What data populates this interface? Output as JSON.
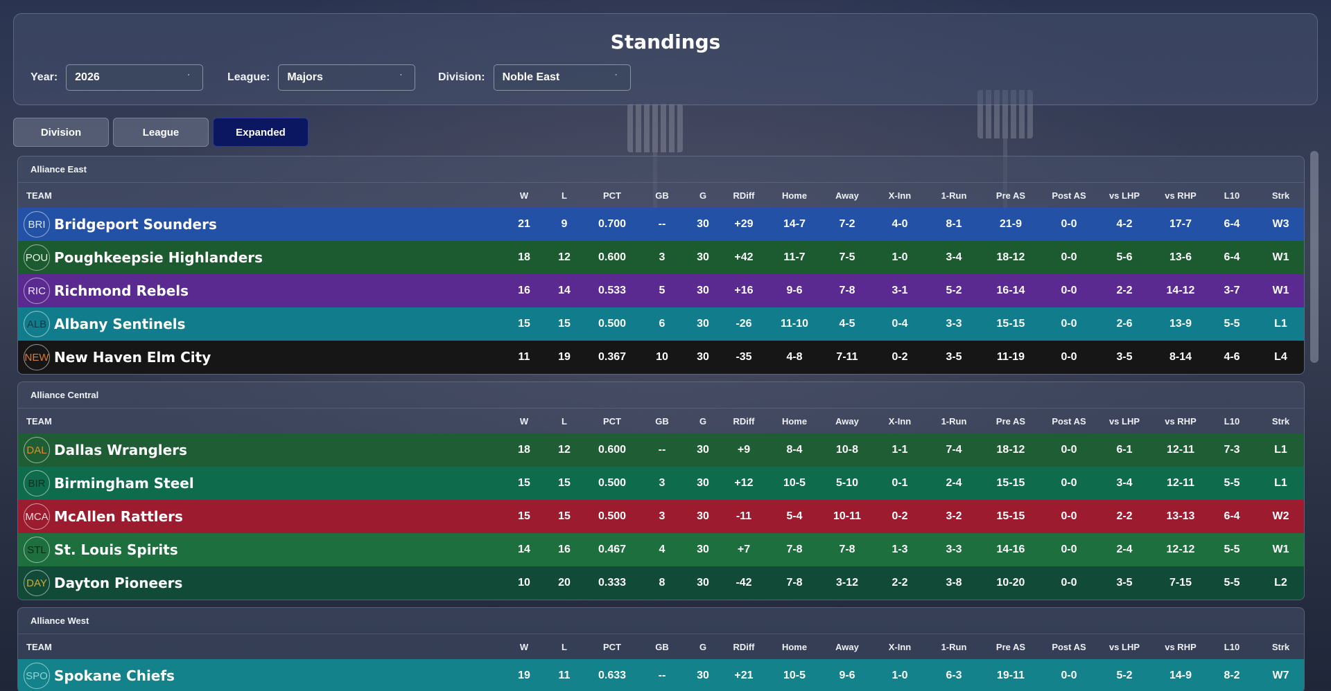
{
  "title": "Standings",
  "filters": {
    "year": {
      "label": "Year:",
      "value": "2026"
    },
    "league": {
      "label": "League:",
      "value": "Majors"
    },
    "division": {
      "label": "Division:",
      "value": "Noble East"
    }
  },
  "tabs": [
    {
      "label": "Division",
      "active": false
    },
    {
      "label": "League",
      "active": false
    },
    {
      "label": "Expanded",
      "active": true
    }
  ],
  "columns": [
    "TEAM",
    "W",
    "L",
    "PCT",
    "GB",
    "G",
    "RDiff",
    "Home",
    "Away",
    "X-Inn",
    "1-Run",
    "Pre AS",
    "Post AS",
    "vs LHP",
    "vs RHP",
    "L10",
    "Strk"
  ],
  "divisions": [
    {
      "name": "Alliance East",
      "teams": [
        {
          "abbr": "BRI",
          "name": "Bridgeport Sounders",
          "color": "#2351a6",
          "badge_color": "#dfe8ff",
          "stats": [
            "21",
            "9",
            "0.700",
            "--",
            "30",
            "+29",
            "14-7",
            "7-2",
            "4-0",
            "8-1",
            "21-9",
            "0-0",
            "4-2",
            "17-7",
            "6-4",
            "W3"
          ]
        },
        {
          "abbr": "POU",
          "name": "Poughkeepsie Highlanders",
          "color": "#1c5a2f",
          "badge_color": "#e8f5e8",
          "stats": [
            "18",
            "12",
            "0.600",
            "3",
            "30",
            "+42",
            "11-7",
            "7-5",
            "1-0",
            "3-4",
            "18-12",
            "0-0",
            "5-6",
            "13-6",
            "6-4",
            "W1"
          ]
        },
        {
          "abbr": "RIC",
          "name": "Richmond Rebels",
          "color": "#5a2a90",
          "badge_color": "#efe6ff",
          "stats": [
            "16",
            "14",
            "0.533",
            "5",
            "30",
            "+16",
            "9-6",
            "7-8",
            "3-1",
            "5-2",
            "16-14",
            "0-0",
            "2-2",
            "14-12",
            "3-7",
            "W1"
          ]
        },
        {
          "abbr": "ALB",
          "name": "Albany Sentinels",
          "color": "#117d8c",
          "badge_color": "#0d3a44",
          "stats": [
            "15",
            "15",
            "0.500",
            "6",
            "30",
            "-26",
            "11-10",
            "4-5",
            "0-4",
            "3-3",
            "15-15",
            "0-0",
            "2-6",
            "13-9",
            "5-5",
            "L1"
          ]
        },
        {
          "abbr": "NEW",
          "name": "New Haven Elm City",
          "color": "#161616",
          "badge_color": "#e07a2a",
          "stats": [
            "11",
            "19",
            "0.367",
            "10",
            "30",
            "-35",
            "4-8",
            "7-11",
            "0-2",
            "3-5",
            "11-19",
            "0-0",
            "3-5",
            "8-14",
            "4-6",
            "L4"
          ]
        }
      ]
    },
    {
      "name": "Alliance Central",
      "teams": [
        {
          "abbr": "DAL",
          "name": "Dallas Wranglers",
          "color": "#1f5e34",
          "badge_color": "#e48a22",
          "stats": [
            "18",
            "12",
            "0.600",
            "--",
            "30",
            "+9",
            "8-4",
            "10-8",
            "1-1",
            "7-4",
            "18-12",
            "0-0",
            "6-1",
            "12-11",
            "7-3",
            "L1"
          ]
        },
        {
          "abbr": "BIR",
          "name": "Birmingham Steel",
          "color": "#0e6b4b",
          "badge_color": "#0b2e24",
          "stats": [
            "15",
            "15",
            "0.500",
            "3",
            "30",
            "+12",
            "10-5",
            "5-10",
            "0-1",
            "2-4",
            "15-15",
            "0-0",
            "3-4",
            "12-11",
            "5-5",
            "L1"
          ]
        },
        {
          "abbr": "MCA",
          "name": "McAllen Rattlers",
          "color": "#9c1b2e",
          "badge_color": "#f4d8dc",
          "stats": [
            "15",
            "15",
            "0.500",
            "3",
            "30",
            "-11",
            "5-4",
            "10-11",
            "0-2",
            "3-2",
            "15-15",
            "0-0",
            "2-2",
            "13-13",
            "6-4",
            "W2"
          ]
        },
        {
          "abbr": "STL",
          "name": "St. Louis Spirits",
          "color": "#1d6f3e",
          "badge_color": "#0c2a18",
          "stats": [
            "14",
            "16",
            "0.467",
            "4",
            "30",
            "+7",
            "7-8",
            "7-8",
            "1-3",
            "3-3",
            "14-16",
            "0-0",
            "2-4",
            "12-12",
            "5-5",
            "W1"
          ]
        },
        {
          "abbr": "DAY",
          "name": "Dayton Pioneers",
          "color": "#114a36",
          "badge_color": "#d4a93a",
          "stats": [
            "10",
            "20",
            "0.333",
            "8",
            "30",
            "-42",
            "7-8",
            "3-12",
            "2-2",
            "3-8",
            "10-20",
            "0-0",
            "3-5",
            "7-15",
            "5-5",
            "L2"
          ]
        }
      ]
    },
    {
      "name": "Alliance West",
      "teams": [
        {
          "abbr": "SPO",
          "name": "Spokane Chiefs",
          "color": "#13828a",
          "badge_color": "#8fd4d8",
          "stats": [
            "19",
            "11",
            "0.633",
            "--",
            "30",
            "+21",
            "10-5",
            "9-6",
            "1-0",
            "6-3",
            "19-11",
            "0-0",
            "5-2",
            "14-9",
            "8-2",
            "W7"
          ]
        }
      ]
    }
  ]
}
